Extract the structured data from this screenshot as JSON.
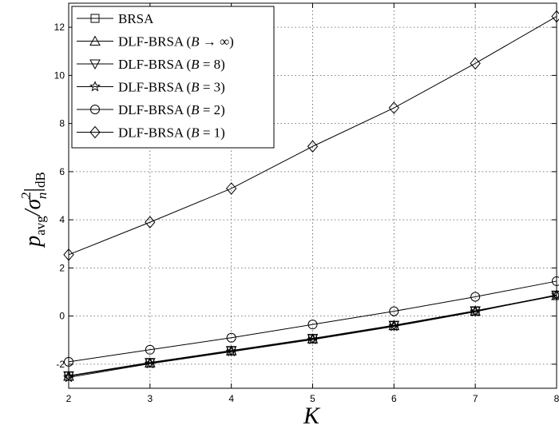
{
  "chart_data": {
    "type": "line",
    "title": "",
    "xlabel": "K",
    "ylabel": "p_avg / σ_n² |dB",
    "ylabel_parts": {
      "main": "p",
      "main_sub": "avg",
      "sep": "/σ",
      "sup": "2",
      "sub": "n",
      "bar": "|",
      "tail_sub": "dB"
    },
    "xlim": [
      2,
      8
    ],
    "ylim": [
      -3,
      13
    ],
    "xticks": [
      2,
      3,
      4,
      5,
      6,
      7,
      8
    ],
    "yticks": [
      -2,
      0,
      2,
      4,
      6,
      8,
      10,
      12
    ],
    "grid": true,
    "legend_position": "top-left",
    "x": [
      2,
      3,
      4,
      5,
      6,
      7,
      8
    ],
    "series": [
      {
        "name": "BRSA",
        "marker": "square",
        "values": [
          -2.5,
          -1.95,
          -1.45,
          -0.95,
          -0.4,
          0.2,
          0.85
        ]
      },
      {
        "name": "DLF-BRSA (B → ∞)",
        "name_parts": [
          "DLF-BRSA (",
          "B",
          " → ∞)"
        ],
        "marker": "triangle-up",
        "values": [
          -2.5,
          -1.95,
          -1.45,
          -0.95,
          -0.4,
          0.2,
          0.85
        ]
      },
      {
        "name": "DLF-BRSA (B = 8)",
        "name_parts": [
          "DLF-BRSA (",
          "B",
          " = 8)"
        ],
        "marker": "triangle-down",
        "values": [
          -2.48,
          -1.93,
          -1.43,
          -0.93,
          -0.38,
          0.22,
          0.87
        ]
      },
      {
        "name": "DLF-BRSA (B = 3)",
        "name_parts": [
          "DLF-BRSA (",
          "B",
          " = 3)"
        ],
        "marker": "star",
        "values": [
          -2.55,
          -1.98,
          -1.48,
          -0.98,
          -0.43,
          0.18,
          0.88
        ]
      },
      {
        "name": "DLF-BRSA (B = 2)",
        "name_parts": [
          "DLF-BRSA (",
          "B",
          " = 2)"
        ],
        "marker": "circle",
        "values": [
          -1.9,
          -1.4,
          -0.9,
          -0.35,
          0.2,
          0.8,
          1.45
        ]
      },
      {
        "name": "DLF-BRSA (B = 1)",
        "name_parts": [
          "DLF-BRSA (",
          "B",
          " = 1)"
        ],
        "marker": "diamond",
        "values": [
          2.55,
          3.9,
          5.3,
          7.05,
          8.65,
          10.5,
          12.45
        ]
      }
    ]
  }
}
